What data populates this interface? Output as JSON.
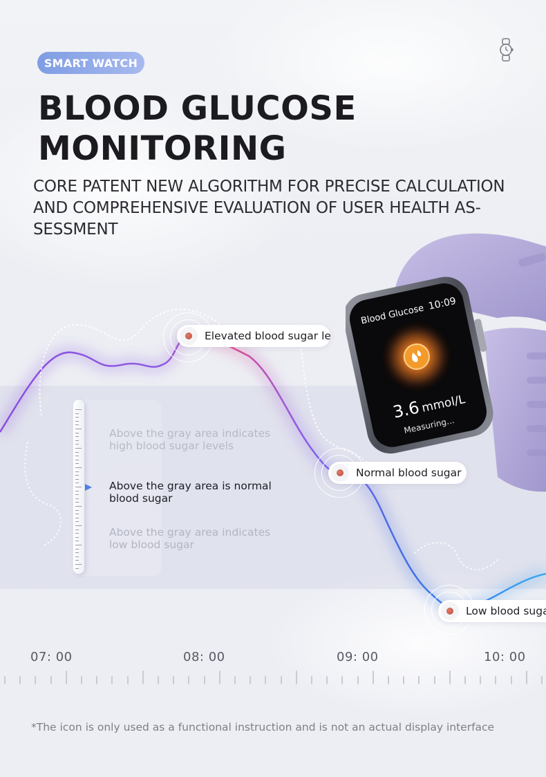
{
  "header": {
    "tag": "SMART WATCH",
    "title_line1": "BLOOD GLUCOSE",
    "title_line2": "MONITORING",
    "subtitle_line1": "CORE PATENT NEW ALGORITHM FOR PRECISE CALCULATION",
    "subtitle_line2": "AND COMPREHENSIVE EVALUATION OF USER HEALTH AS-",
    "subtitle_line3": "SESSMENT"
  },
  "legend": {
    "high_line1": "Above the gray area indicates",
    "high_line2": "high blood sugar levels",
    "normal_line1": "Above the gray area is normal",
    "normal_line2": "blood sugar",
    "low_line1": "Above the gray area indicates",
    "low_line2": "low blood sugar"
  },
  "markers": {
    "elevated": "Elevated blood sugar levels",
    "normal": "Normal blood sugar",
    "low": "Low blood sugar"
  },
  "timeline": [
    "07: 00",
    "08: 00",
    "09: 00",
    "10: 00"
  ],
  "watch_screen": {
    "title": "Blood Glucose",
    "time": "10:09",
    "value": "3.6",
    "unit": "mmol/L",
    "status": "Measuring..."
  },
  "footnote": "*The icon is only used as a functional instruction and is not an actual display interface",
  "colors": {
    "tag_start": "#7f9de3",
    "curve_purple": "#8a5be0",
    "curve_pink": "#e6468e",
    "curve_blue": "#3f6fe6",
    "watch_band": "#b3a9d9",
    "marker_dot": "#c75a48"
  }
}
